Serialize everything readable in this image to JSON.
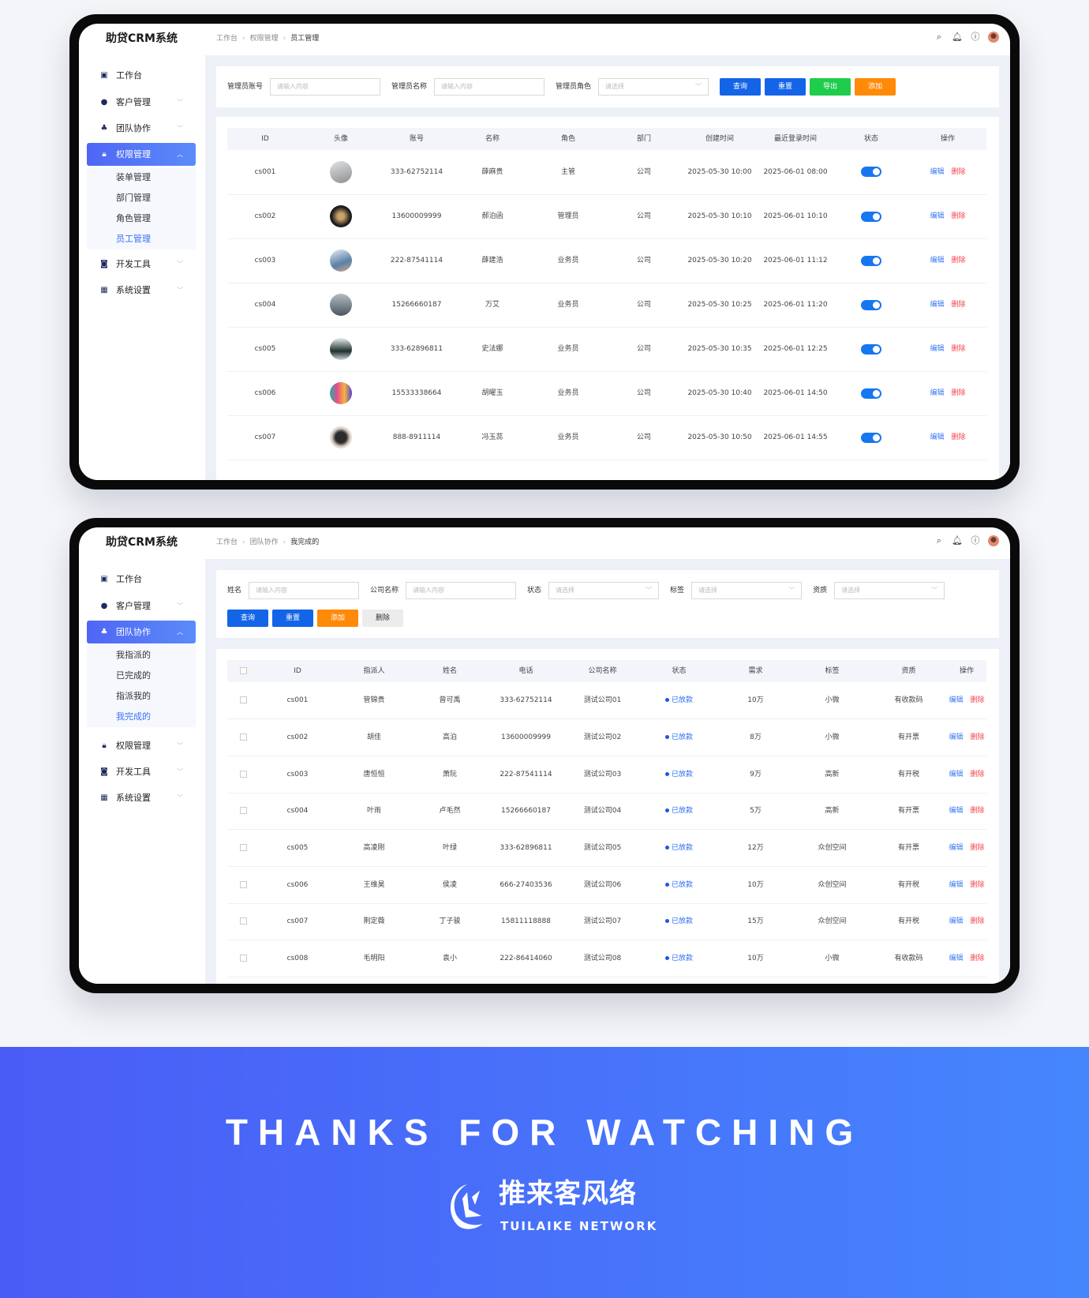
{
  "app": {
    "title": "助贷CRM系统"
  },
  "header_icons": [
    "search-icon",
    "bell-icon",
    "help-icon",
    "user-avatar"
  ],
  "colors": {
    "primary": "#1464e8",
    "success": "#1fcc4c",
    "warning": "#ff8a07",
    "danger": "#f5424b",
    "sidebar_active": "#4f66f5",
    "banner": "#4a5cf6"
  },
  "screen1": {
    "breadcrumb": [
      "工作台",
      "权限管理",
      "员工管理"
    ],
    "sidebar": {
      "items": [
        {
          "label": "工作台",
          "icon": "dashboard-icon"
        },
        {
          "label": "客户管理",
          "icon": "user-icon"
        },
        {
          "label": "团队协作",
          "icon": "team-icon"
        },
        {
          "label": "权限管理",
          "icon": "lock-icon",
          "active": true
        },
        {
          "label": "开发工具",
          "icon": "tools-icon"
        },
        {
          "label": "系统设置",
          "icon": "grid-icon"
        }
      ],
      "submenu": [
        "装单管理",
        "部门管理",
        "角色管理",
        "员工管理"
      ],
      "submenu_active": 3
    },
    "filters": [
      {
        "label": "管理员账号",
        "placeholder": "请输入内容"
      },
      {
        "label": "管理员名称",
        "placeholder": "请输入内容"
      },
      {
        "label": "管理员角色",
        "placeholder": "请选择",
        "select": true
      }
    ],
    "buttons": [
      "查询",
      "重置",
      "导出",
      "添加"
    ],
    "columns": [
      "ID",
      "头像",
      "账号",
      "名称",
      "角色",
      "部门",
      "创建时间",
      "最近登录时间",
      "状态",
      "操作"
    ],
    "rows": [
      {
        "id": "cs001",
        "account": "333-62752114",
        "name": "薛麻贵",
        "role": "主管",
        "dept": "公司",
        "created": "2025-05-30  10:00",
        "last_login": "2025-06-01  08:00",
        "enabled": true
      },
      {
        "id": "cs002",
        "account": "13600009999",
        "name": "郝泊函",
        "role": "管理员",
        "dept": "公司",
        "created": "2025-05-30  10:10",
        "last_login": "2025-06-01 10:10",
        "enabled": true
      },
      {
        "id": "cs003",
        "account": "222-87541114",
        "name": "薛建浩",
        "role": "业务员",
        "dept": "公司",
        "created": "2025-05-30  10:20",
        "last_login": "2025-06-01  11:12",
        "enabled": true
      },
      {
        "id": "cs004",
        "account": "15266660187",
        "name": "万艾",
        "role": "业务员",
        "dept": "公司",
        "created": "2025-05-30  10:25",
        "last_login": "2025-06-01  11:20",
        "enabled": true
      },
      {
        "id": "cs005",
        "account": "333-62896811",
        "name": "史法娜",
        "role": "业务员",
        "dept": "公司",
        "created": "2025-05-30  10:35",
        "last_login": "2025-06-01 12:25",
        "enabled": true
      },
      {
        "id": "cs006",
        "account": "15533338664",
        "name": "胡曜玉",
        "role": "业务员",
        "dept": "公司",
        "created": "2025-05-30  10:40",
        "last_login": "2025-06-01  14:50",
        "enabled": true
      },
      {
        "id": "cs007",
        "account": "888-8911114",
        "name": "冯玉蕊",
        "role": "业务员",
        "dept": "公司",
        "created": "2025-05-30  10:50",
        "last_login": "2025-06-01  14:55",
        "enabled": true
      }
    ],
    "actions": {
      "edit": "编辑",
      "delete": "删除"
    }
  },
  "screen2": {
    "breadcrumb": [
      "工作台",
      "团队协作",
      "我完成的"
    ],
    "sidebar": {
      "items": [
        {
          "label": "工作台",
          "icon": "dashboard-icon"
        },
        {
          "label": "客户管理",
          "icon": "user-icon"
        },
        {
          "label": "团队协作",
          "icon": "team-icon",
          "active": true
        },
        {
          "label": "权限管理",
          "icon": "lock-icon"
        },
        {
          "label": "开发工具",
          "icon": "tools-icon"
        },
        {
          "label": "系统设置",
          "icon": "grid-icon"
        }
      ],
      "submenu": [
        "我指派的",
        "已完成的",
        "指派我的",
        "我完成的"
      ],
      "submenu_active": 3
    },
    "filters": [
      {
        "label": "姓名",
        "placeholder": "请输入内容"
      },
      {
        "label": "公司名称",
        "placeholder": "请输入内容"
      },
      {
        "label": "状态",
        "placeholder": "请选择",
        "select": true
      },
      {
        "label": "标签",
        "placeholder": "请选择",
        "select": true
      },
      {
        "label": "资质",
        "placeholder": "请选择",
        "select": true
      }
    ],
    "buttons": [
      "查询",
      "重置",
      "添加",
      "删除"
    ],
    "columns": [
      "",
      "ID",
      "指派人",
      "姓名",
      "电话",
      "公司名称",
      "状态",
      "需求",
      "标签",
      "资质",
      "操作"
    ],
    "rows": [
      {
        "id": "cs001",
        "assigner": "管锦贵",
        "name": "曾可禹",
        "phone": "333-62752114",
        "company": "测试公司01",
        "status": "已放款",
        "demand": "10万",
        "tag": "小微",
        "qualification": "有收款码"
      },
      {
        "id": "cs002",
        "assigner": "胡佳",
        "name": "高泊",
        "phone": "13600009999",
        "company": "测试公司02",
        "status": "已放款",
        "demand": "8万",
        "tag": "小微",
        "qualification": "有开票"
      },
      {
        "id": "cs003",
        "assigner": "唐恒恒",
        "name": "萧阮",
        "phone": "222-87541114",
        "company": "测试公司03",
        "status": "已放款",
        "demand": "9万",
        "tag": "高新",
        "qualification": "有开税"
      },
      {
        "id": "cs004",
        "assigner": "叶雨",
        "name": "卢毛然",
        "phone": "15266660187",
        "company": "测试公司04",
        "status": "已放款",
        "demand": "5万",
        "tag": "高新",
        "qualification": "有开票"
      },
      {
        "id": "cs005",
        "assigner": "高凌刚",
        "name": "叶绿",
        "phone": "333-62896811",
        "company": "测试公司05",
        "status": "已放款",
        "demand": "12万",
        "tag": "众创空间",
        "qualification": "有开票"
      },
      {
        "id": "cs006",
        "assigner": "王维昊",
        "name": "侯凌",
        "phone": "666-27403536",
        "company": "测试公司06",
        "status": "已放款",
        "demand": "10万",
        "tag": "众创空间",
        "qualification": "有开税"
      },
      {
        "id": "cs007",
        "assigner": "荆定薇",
        "name": "丁子骏",
        "phone": "15811118888",
        "company": "测试公司07",
        "status": "已放款",
        "demand": "15万",
        "tag": "众创空间",
        "qualification": "有开税"
      },
      {
        "id": "cs008",
        "assigner": "毛明阳",
        "name": "袁小",
        "phone": "222-86414060",
        "company": "测试公司08",
        "status": "已放款",
        "demand": "10万",
        "tag": "小微",
        "qualification": "有收款码"
      }
    ],
    "actions": {
      "edit": "编辑",
      "delete": "删除"
    }
  },
  "banner": {
    "headline": "THANKS FOR WATCHING",
    "brand_cn": "推来客风络",
    "brand_en": "TUILAIKE NETWORK"
  }
}
